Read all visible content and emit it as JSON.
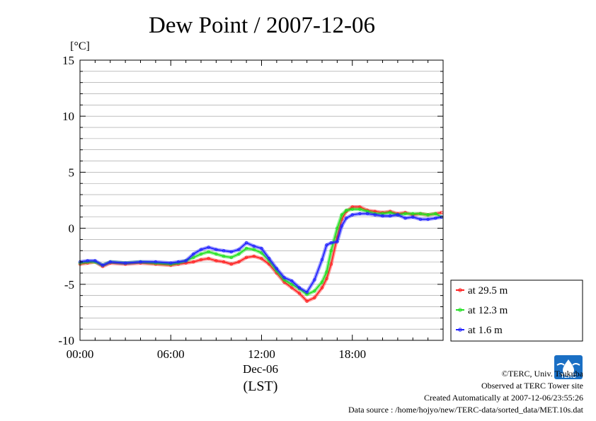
{
  "chart_data": {
    "type": "line",
    "title": "Dew Point / 2007-12-06",
    "ylabel": "[°C]",
    "ylim": [
      -10,
      15
    ],
    "yticks": [
      15,
      10,
      5,
      0,
      -5,
      -10
    ],
    "xlim": [
      0,
      24
    ],
    "xticks": [
      {
        "value": 0,
        "label": "00:00"
      },
      {
        "value": 6,
        "label": "06:00"
      },
      {
        "value": 12,
        "label": "12:00"
      },
      {
        "value": 18,
        "label": "18:00"
      }
    ],
    "xdate": "Dec-06",
    "xunit": "(LST)",
    "grid": true,
    "legend_position": "right",
    "series": [
      {
        "name": "at 29.5 m",
        "color": "#ff2020",
        "x": [
          0,
          0.5,
          1,
          1.5,
          2,
          3,
          4,
          5,
          6,
          6.5,
          7,
          7.5,
          8,
          8.5,
          9,
          9.5,
          10,
          10.5,
          11,
          11.5,
          12,
          12.5,
          13,
          13.5,
          14,
          14.5,
          15,
          15.5,
          16,
          16.3,
          16.6,
          17,
          17.3,
          17.6,
          18,
          18.5,
          19,
          19.5,
          20,
          20.5,
          21,
          21.5,
          22,
          22.5,
          23,
          23.5,
          23.9
        ],
        "values": [
          -3.2,
          -3.1,
          -3.0,
          -3.4,
          -3.1,
          -3.2,
          -3.1,
          -3.2,
          -3.3,
          -3.2,
          -3.1,
          -3.0,
          -2.8,
          -2.7,
          -2.9,
          -3.0,
          -3.2,
          -3.0,
          -2.6,
          -2.5,
          -2.7,
          -3.2,
          -4.0,
          -4.8,
          -5.3,
          -5.8,
          -6.5,
          -6.2,
          -5.3,
          -4.5,
          -3.2,
          -0.8,
          0.8,
          1.5,
          1.9,
          1.9,
          1.6,
          1.5,
          1.4,
          1.5,
          1.3,
          1.4,
          1.2,
          1.3,
          1.2,
          1.3,
          1.4
        ]
      },
      {
        "name": "at 12.3 m",
        "color": "#20e020",
        "x": [
          0,
          0.5,
          1,
          1.5,
          2,
          3,
          4,
          5,
          6,
          6.5,
          7,
          7.5,
          8,
          8.5,
          9,
          9.5,
          10,
          10.5,
          11,
          11.5,
          12,
          12.5,
          13,
          13.5,
          14,
          14.5,
          15,
          15.5,
          16,
          16.3,
          16.6,
          17,
          17.3,
          17.6,
          18,
          18.5,
          19,
          19.5,
          20,
          20.5,
          21,
          21.5,
          22,
          22.5,
          23,
          23.5,
          23.9
        ],
        "values": [
          -3.1,
          -3.0,
          -3.0,
          -3.3,
          -3.0,
          -3.1,
          -3.0,
          -3.1,
          -3.2,
          -3.1,
          -2.9,
          -2.6,
          -2.3,
          -2.1,
          -2.3,
          -2.5,
          -2.6,
          -2.3,
          -1.8,
          -1.9,
          -2.2,
          -2.9,
          -3.8,
          -4.6,
          -5.0,
          -5.4,
          -5.9,
          -5.6,
          -4.8,
          -3.9,
          -2.0,
          0.0,
          1.2,
          1.6,
          1.7,
          1.7,
          1.5,
          1.3,
          1.3,
          1.4,
          1.2,
          1.3,
          1.3,
          1.3,
          1.2,
          1.3,
          1.0
        ]
      },
      {
        "name": "at 1.6 m",
        "color": "#2020ff",
        "x": [
          0,
          0.5,
          1,
          1.5,
          2,
          3,
          4,
          5,
          6,
          6.5,
          7,
          7.5,
          8,
          8.5,
          9,
          9.5,
          10,
          10.5,
          11,
          11.5,
          12,
          12.5,
          13,
          13.5,
          14,
          14.5,
          15,
          15.5,
          16,
          16.3,
          16.6,
          17,
          17.3,
          17.6,
          18,
          18.5,
          19,
          19.5,
          20,
          20.5,
          21,
          21.5,
          22,
          22.5,
          23,
          23.5,
          23.9
        ],
        "values": [
          -3.0,
          -2.9,
          -2.9,
          -3.3,
          -3.0,
          -3.1,
          -3.0,
          -3.0,
          -3.1,
          -3.0,
          -2.9,
          -2.3,
          -1.9,
          -1.7,
          -1.9,
          -2.0,
          -2.1,
          -1.9,
          -1.3,
          -1.6,
          -1.8,
          -2.7,
          -3.6,
          -4.4,
          -4.7,
          -5.3,
          -5.7,
          -4.6,
          -2.8,
          -1.5,
          -1.3,
          -1.2,
          0.2,
          0.9,
          1.2,
          1.3,
          1.3,
          1.2,
          1.1,
          1.1,
          1.2,
          0.9,
          1.0,
          0.8,
          0.8,
          0.9,
          1.0
        ]
      }
    ]
  },
  "credits": {
    "copyright": "©TERC, Univ. Tsukuba",
    "observed": "Observed at TERC Tower site",
    "created": "Created Automatically at 2007-12-06/23:55:26",
    "source": "Data source : /home/hojyo/new/TERC-data/sorted_data/MET.10s.dat"
  },
  "logo": {
    "text": "TERC",
    "color": "#1a6fc4"
  }
}
